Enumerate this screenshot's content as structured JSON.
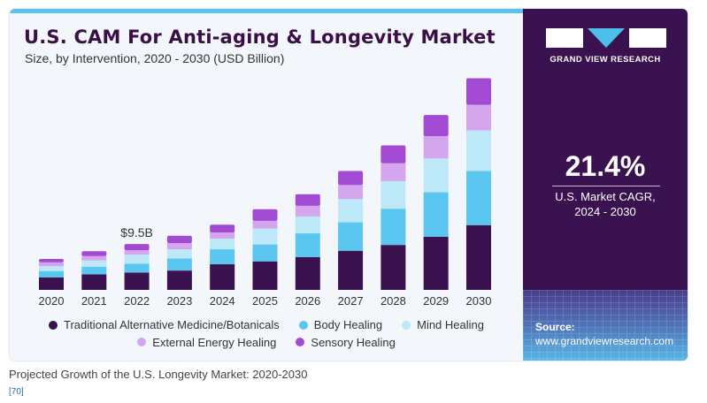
{
  "header": {
    "title": "U.S. CAM For Anti-aging & Longevity Market",
    "subtitle": "Size, by Intervention, 2020 - 2030 (USD Billion)"
  },
  "sidebar": {
    "brand": "GRAND VIEW RESEARCH",
    "cagr_value": "21.4%",
    "cagr_label_line1": "U.S. Market CAGR,",
    "cagr_label_line2": "2024 - 2030",
    "source_label": "Source:",
    "source_url": "www.grandviewresearch.com"
  },
  "caption": "Projected Growth of the U.S. Longevity Market: 2020-2030",
  "reference": "[70]",
  "colors": {
    "accent_bar": "#5bc3ec",
    "panel": "#3b1250",
    "title": "#3a0f45"
  },
  "chart_data": {
    "type": "bar",
    "stacked": true,
    "title": "U.S. CAM For Anti-aging & Longevity Market",
    "subtitle": "Size, by Intervention, 2020 - 2030 (USD Billion)",
    "xlabel": "",
    "ylabel": "",
    "ylim": [
      0,
      45
    ],
    "grid": false,
    "legend_position": "bottom",
    "categories": [
      "2020",
      "2021",
      "2022",
      "2023",
      "2024",
      "2025",
      "2026",
      "2027",
      "2028",
      "2029",
      "2030"
    ],
    "series": [
      {
        "name": "Traditional Alternative Medicine/Botanicals",
        "color": "#3b1250",
        "values": [
          2.6,
          3.2,
          3.6,
          4.0,
          5.3,
          5.9,
          6.8,
          8.1,
          9.3,
          11.0,
          13.4
        ]
      },
      {
        "name": "Body Healing",
        "color": "#5bc6f0",
        "values": [
          1.3,
          1.6,
          1.8,
          2.5,
          3.1,
          3.5,
          4.9,
          5.9,
          7.5,
          9.2,
          11.2
        ]
      },
      {
        "name": "Mind Healing",
        "color": "#bde8f8",
        "values": [
          1.0,
          1.3,
          1.9,
          1.9,
          2.2,
          3.3,
          3.5,
          4.8,
          5.7,
          7.0,
          8.4
        ]
      },
      {
        "name": "External Energy Healing",
        "color": "#d3a6ee",
        "values": [
          0.8,
          0.9,
          0.9,
          1.3,
          1.3,
          1.6,
          2.2,
          2.9,
          3.7,
          4.6,
          5.3
        ]
      },
      {
        "name": "Sensory Healing",
        "color": "#a34ad4",
        "values": [
          0.7,
          1.0,
          1.3,
          1.5,
          1.6,
          2.4,
          2.4,
          2.9,
          3.7,
          4.4,
          5.5
        ]
      }
    ],
    "annotations": [
      {
        "category": "2022",
        "text": "$9.5B"
      }
    ],
    "cagr": {
      "value": "21.4%",
      "period": "2024 - 2030"
    }
  }
}
